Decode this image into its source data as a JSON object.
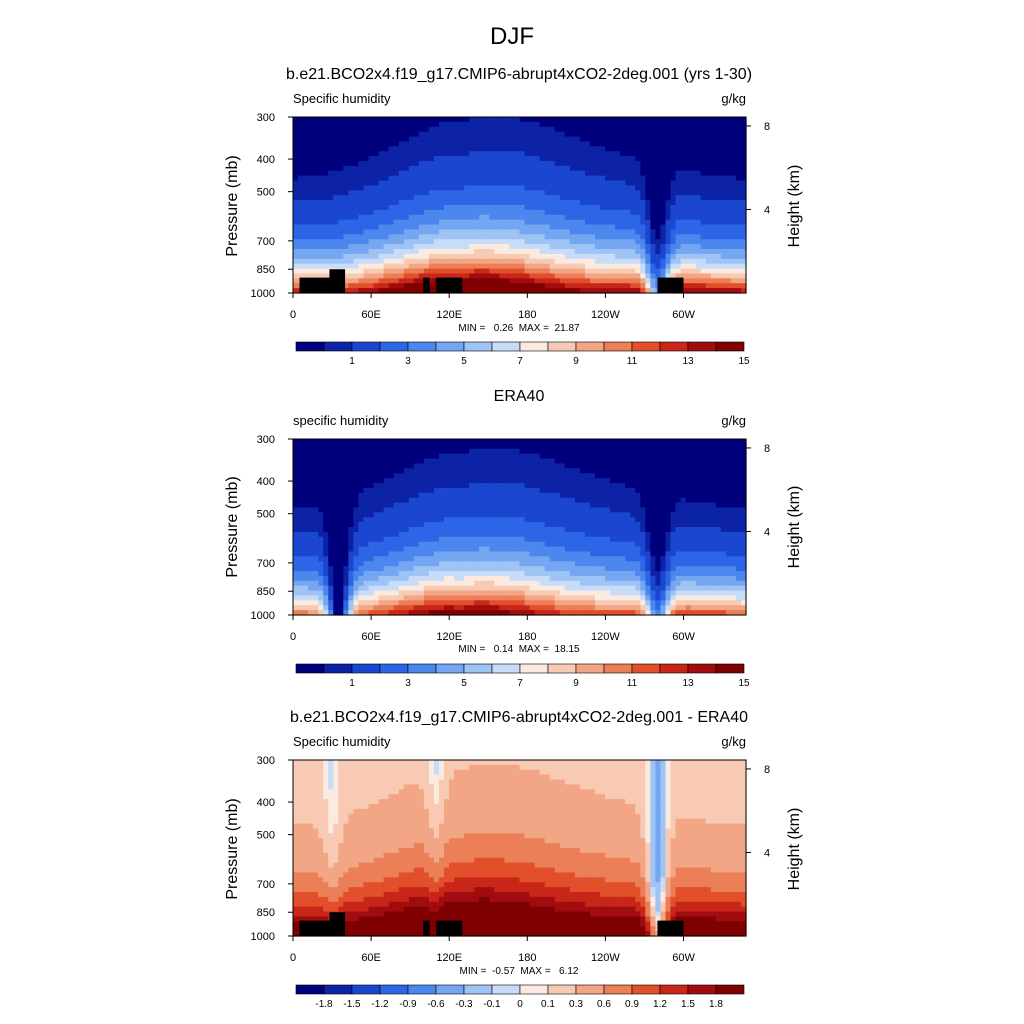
{
  "figure": {
    "title": "DJF",
    "colors": {
      "seq": [
        "#00007d",
        "#0c23a6",
        "#1b46cf",
        "#2c66e6",
        "#4c87ee",
        "#74a6f2",
        "#9ec3f5",
        "#c6dcf8",
        "#fbeadf",
        "#f8cab3",
        "#f2a685",
        "#eb7f57",
        "#e24f2b",
        "#c9261a",
        "#a10d0f",
        "#7f0000"
      ],
      "diff": [
        "#00007d",
        "#0c23a6",
        "#1b46cf",
        "#2c66e6",
        "#4c87ee",
        "#74a6f2",
        "#9ec3f5",
        "#c6dcf8",
        "#fbeadf",
        "#f8cab3",
        "#f2a685",
        "#eb7f57",
        "#e24f2b",
        "#c9261a",
        "#a10d0f",
        "#7f0000"
      ],
      "land": "#000000"
    }
  },
  "chart_data": [
    {
      "type": "heatmap",
      "panel_title": "b.e21.BCO2x4.f19_g17.CMIP6-abrupt4xCO2-2deg.001 (yrs 1-30)",
      "left_label": "Specific humidity",
      "right_label": "g/kg",
      "ylabel": "Pressure (mb)",
      "ylabel_right": "Height (km)",
      "x_ticks": [
        "0",
        "60E",
        "120E",
        "180",
        "120W",
        "60W"
      ],
      "x_tick_lon": [
        0,
        60,
        120,
        180,
        240,
        300
      ],
      "y_ticks": [
        "300",
        "400",
        "500",
        "700",
        "850",
        "1000"
      ],
      "y_tick_p": [
        300,
        400,
        500,
        700,
        850,
        1000
      ],
      "right_ticks": [
        "8",
        "4"
      ],
      "right_tick_km": [
        8,
        4
      ],
      "stats": "MIN =   0.26  MAX =  21.87",
      "colorbar_labels": [
        "1",
        "3",
        "5",
        "7",
        "9",
        "11",
        "13",
        "15"
      ],
      "levels": [
        0.5,
        1,
        2,
        3,
        4,
        5,
        6,
        7,
        8,
        9,
        10,
        11,
        12,
        13,
        14,
        15
      ],
      "scale": 1.0,
      "bias": 0,
      "dips": [
        [
          35,
          0
        ],
        [
          130,
          0.1
        ],
        [
          280,
          1.6
        ]
      ],
      "land": [
        [
          5,
          30,
          900
        ],
        [
          28,
          40,
          850
        ],
        [
          100,
          105,
          900
        ],
        [
          110,
          130,
          900
        ],
        [
          280,
          300,
          900
        ]
      ]
    },
    {
      "type": "heatmap",
      "panel_title": "ERA40",
      "left_label": "specific humidity",
      "right_label": "g/kg",
      "ylabel": "Pressure (mb)",
      "ylabel_right": "Height (km)",
      "x_ticks": [
        "0",
        "60E",
        "120E",
        "180",
        "120W",
        "60W"
      ],
      "x_tick_lon": [
        0,
        60,
        120,
        180,
        240,
        300
      ],
      "y_ticks": [
        "300",
        "400",
        "500",
        "700",
        "850",
        "1000"
      ],
      "y_tick_p": [
        300,
        400,
        500,
        700,
        850,
        1000
      ],
      "right_ticks": [
        "8",
        "4"
      ],
      "right_tick_km": [
        8,
        4
      ],
      "stats": "MIN =   0.14  MAX =  18.15",
      "colorbar_labels": [
        "1",
        "3",
        "5",
        "7",
        "9",
        "11",
        "13",
        "15"
      ],
      "levels": [
        0.5,
        1,
        2,
        3,
        4,
        5,
        6,
        7,
        8,
        9,
        10,
        11,
        12,
        13,
        14,
        15
      ],
      "scale": 0.82,
      "bias": 0,
      "dips": [
        [
          35,
          2.2
        ],
        [
          130,
          0.1
        ],
        [
          280,
          1.7
        ]
      ],
      "land": []
    },
    {
      "type": "heatmap",
      "panel_title": "b.e21.BCO2x4.f19_g17.CMIP6-abrupt4xCO2-2deg.001 - ERA40",
      "left_label": "Specific humidity",
      "right_label": "g/kg",
      "ylabel": "Pressure (mb)",
      "ylabel_right": "Height (km)",
      "x_ticks": [
        "0",
        "60E",
        "120E",
        "180",
        "120W",
        "60W"
      ],
      "x_tick_lon": [
        0,
        60,
        120,
        180,
        240,
        300
      ],
      "y_ticks": [
        "300",
        "400",
        "500",
        "700",
        "850",
        "1000"
      ],
      "y_tick_p": [
        300,
        400,
        500,
        700,
        850,
        1000
      ],
      "right_ticks": [
        "8",
        "4"
      ],
      "right_tick_km": [
        8,
        4
      ],
      "stats": "MIN =  -0.57  MAX =   6.12",
      "colorbar_labels": [
        "-1.8",
        "-1.5",
        "-1.2",
        "-0.9",
        "-0.6",
        "-0.3",
        "-0.1",
        "0",
        "0.1",
        "0.3",
        "0.6",
        "0.9",
        "1.2",
        "1.5",
        "1.8"
      ],
      "levels": [
        -1.8,
        -1.5,
        -1.2,
        -0.9,
        -0.6,
        -0.3,
        -0.1,
        0,
        0.1,
        0.3,
        0.6,
        0.9,
        1.2,
        1.5,
        1.8
      ],
      "scale": 0.18,
      "bias": 0.2,
      "dips": [
        [
          30,
          0.5
        ],
        [
          110,
          0.6
        ],
        [
          280,
          1.2
        ]
      ],
      "land": [
        [
          5,
          30,
          900
        ],
        [
          28,
          40,
          850
        ],
        [
          100,
          105,
          900
        ],
        [
          110,
          130,
          900
        ],
        [
          280,
          300,
          900
        ]
      ]
    }
  ]
}
